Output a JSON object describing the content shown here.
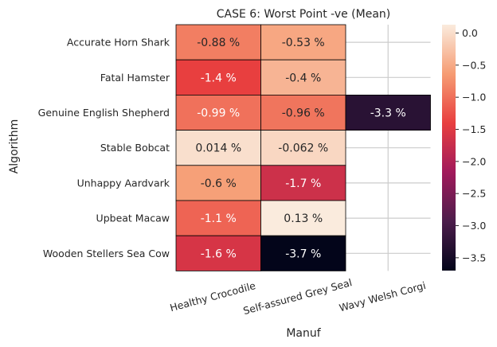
{
  "chart_data": {
    "type": "heatmap",
    "title": "CASE 6: Worst Point -ve (Mean)",
    "xlabel": "Manuf",
    "ylabel": "Algorithm",
    "x_categories": [
      "Healthy Crocodile",
      "Self-assured Grey Seal",
      "Wavy Welsh Corgi"
    ],
    "y_categories": [
      "Accurate Horn Shark",
      "Fatal Hamster",
      "Genuine English Shepherd",
      "Stable Bobcat",
      "Unhappy Aardvark",
      "Upbeat Macaw",
      "Wooden Stellers Sea Cow"
    ],
    "values": [
      [
        -0.88,
        -0.53,
        null
      ],
      [
        -1.4,
        -0.4,
        null
      ],
      [
        -0.99,
        -0.96,
        -3.3
      ],
      [
        0.014,
        -0.062,
        null
      ],
      [
        -0.6,
        -1.7,
        null
      ],
      [
        -1.1,
        0.13,
        null
      ],
      [
        -1.6,
        -3.7,
        null
      ]
    ],
    "annotations": [
      [
        "-0.88 %",
        "-0.53 %",
        ""
      ],
      [
        "-1.4 %",
        "-0.4 %",
        ""
      ],
      [
        "-0.99 %",
        "-0.96 %",
        "-3.3 %"
      ],
      [
        "0.014 %",
        "-0.062 %",
        ""
      ],
      [
        "-0.6 %",
        "-1.7 %",
        ""
      ],
      [
        "-1.1 %",
        "0.13 %",
        ""
      ],
      [
        "-1.6 %",
        "-3.7 %",
        ""
      ]
    ],
    "colorbar": {
      "min": -3.7,
      "max": 0.13,
      "ticks": [
        0.0,
        -0.5,
        -1.0,
        -1.5,
        -2.0,
        -2.5,
        -3.0,
        -3.5
      ],
      "tick_labels": [
        "0.0",
        "−0.5",
        "−1.0",
        "−1.5",
        "−2.0",
        "−2.5",
        "−3.0",
        "−3.5"
      ],
      "colormap": "rocket",
      "colormap_stops": [
        "#03051a",
        "#4c1d4b",
        "#a11a5b",
        "#e83f3f",
        "#f69c73",
        "#faebdd"
      ]
    },
    "grid": true
  }
}
